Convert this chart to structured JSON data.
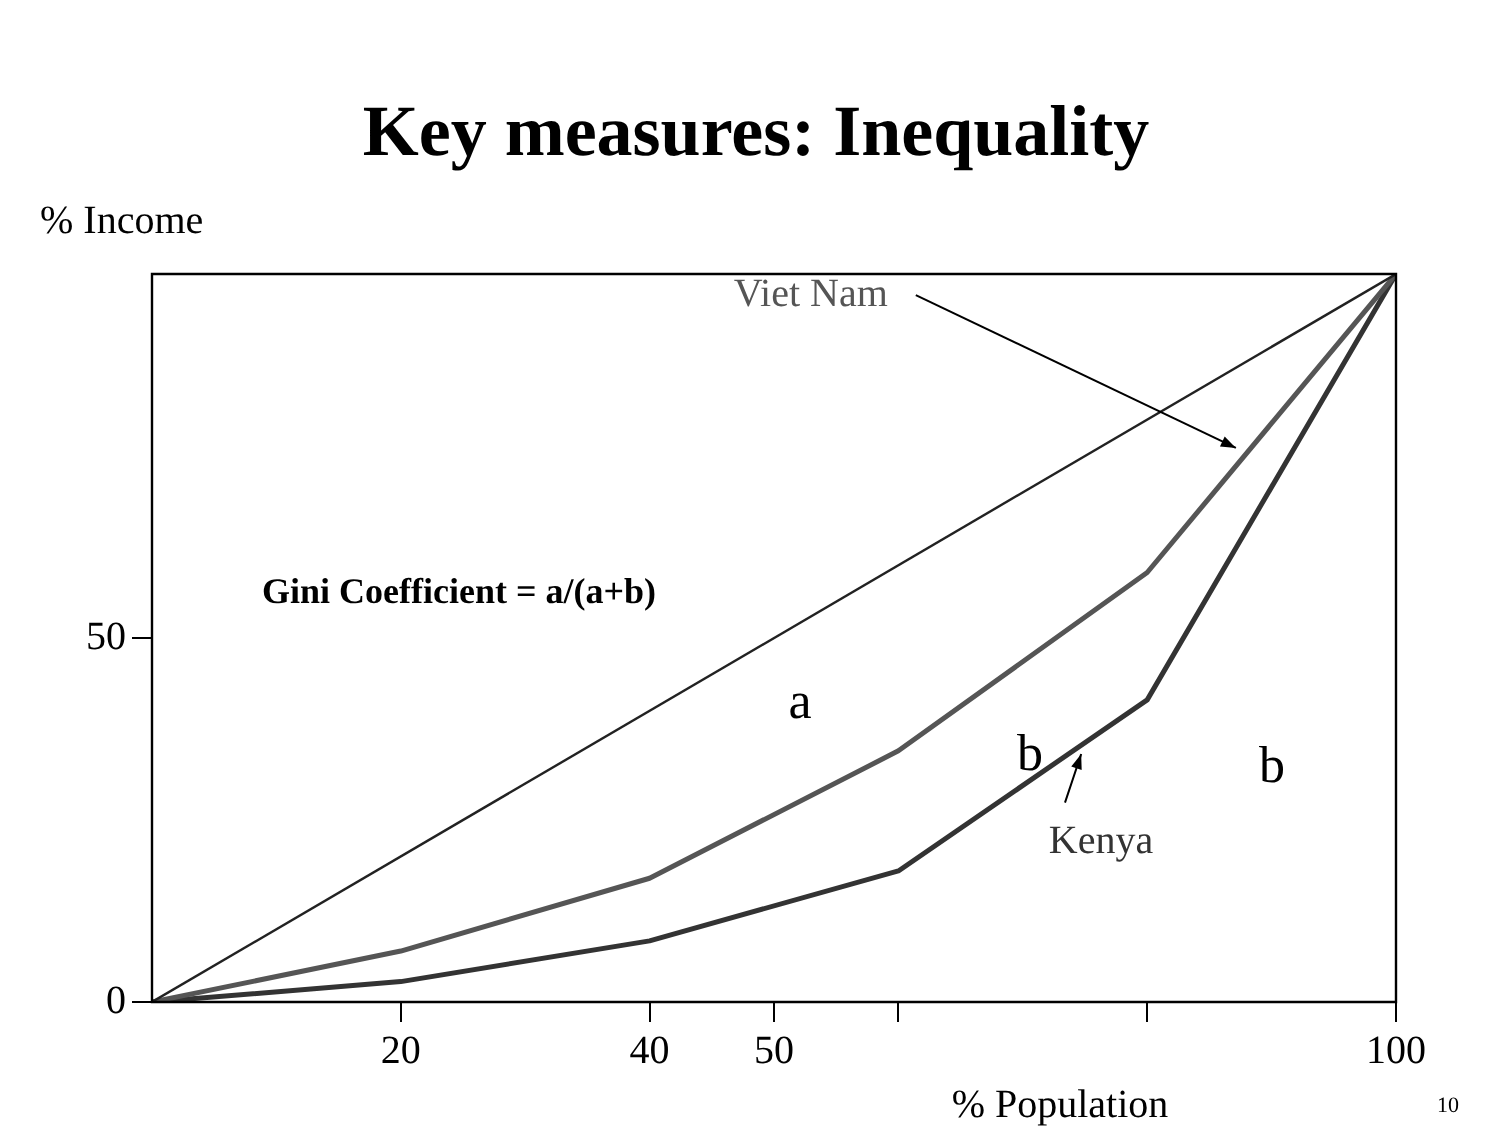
{
  "chart_data": {
    "type": "line",
    "title": "Key measures: Inequality",
    "xlabel": "% Population",
    "ylabel": "% Income",
    "x": [
      0,
      20,
      40,
      60,
      80,
      100
    ],
    "series": [
      {
        "x": [
          0,
          100
        ],
        "color": "#222222",
        "values": [
          0,
          100
        ]
      },
      {
        "name": "Viet Nam",
        "color": "#555555",
        "values": [
          0,
          7,
          17,
          34.5,
          59,
          100
        ]
      },
      {
        "name": "Kenya",
        "color": "#333333",
        "values": [
          0,
          2.8,
          8.4,
          18,
          41.5,
          100
        ]
      }
    ],
    "xlim": [
      0,
      100
    ],
    "ylim": [
      0,
      100
    ],
    "xticks": [
      20,
      40,
      50,
      {
        "value": 60,
        "label": null
      },
      {
        "value": 80,
        "label": null
      },
      100
    ],
    "yticks": [
      0,
      50
    ],
    "annotations": [
      "Gini Coefficient = a/(a+b)",
      "a",
      "b",
      "b",
      "10"
    ],
    "grid": false,
    "legend": false,
    "marker": "none",
    "line_style": "solid"
  }
}
